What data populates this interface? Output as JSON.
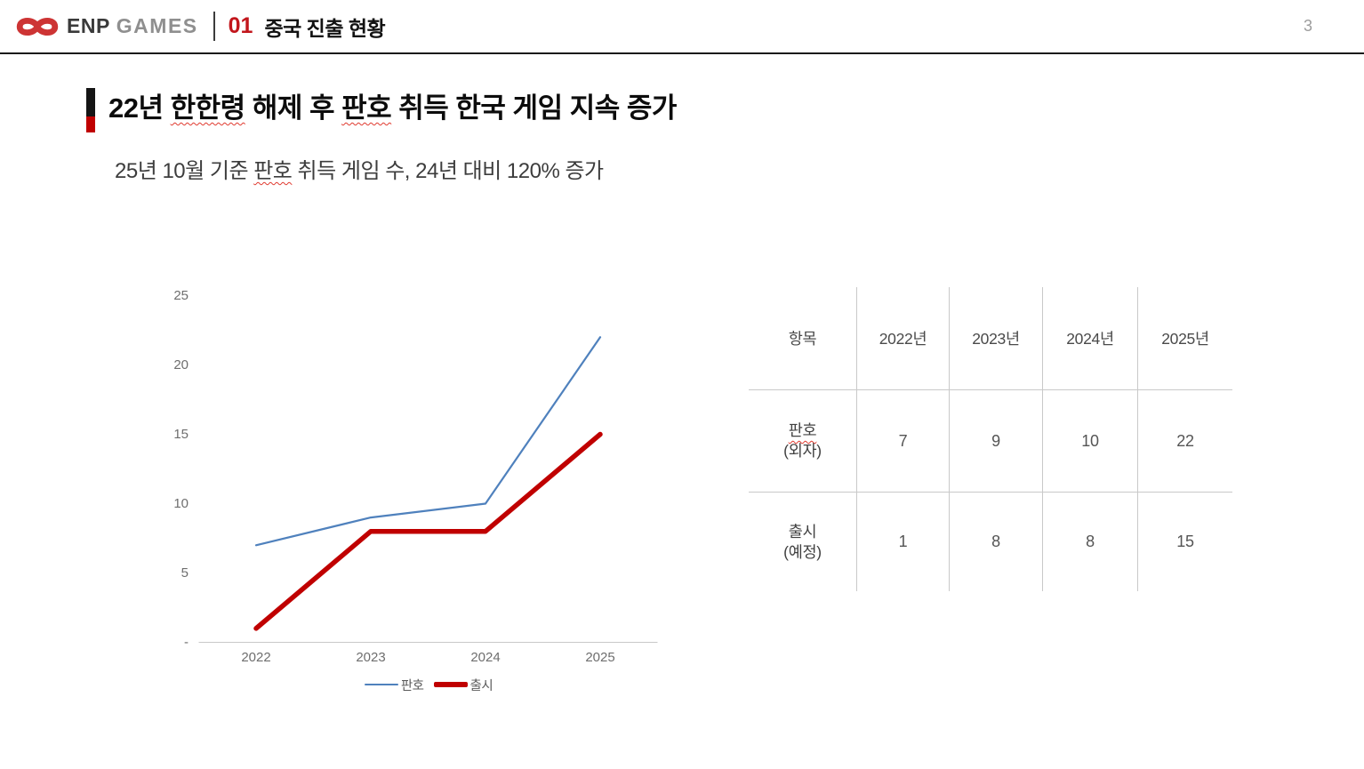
{
  "header": {
    "brand_bold": "ENP",
    "brand_light": "GAMES",
    "section_number": "01",
    "section_title": "중국 진출 현황",
    "page_number": "3"
  },
  "title": {
    "segments": [
      {
        "text": "22년 ",
        "wavy": false
      },
      {
        "text": "한한령",
        "wavy": true
      },
      {
        "text": " 해제 후 ",
        "wavy": false
      },
      {
        "text": "판호",
        "wavy": true
      },
      {
        "text": " 취득 한국 게임 지속 증가",
        "wavy": false
      }
    ],
    "subtitle_segments": [
      {
        "text": "25년 10월 기준 ",
        "wavy": false
      },
      {
        "text": "판호",
        "wavy": true
      },
      {
        "text": " 취득 게임 수, 24년 대비 120% 증가",
        "wavy": false
      }
    ]
  },
  "chart_data": {
    "type": "line",
    "title": "",
    "xlabel": "",
    "ylabel": "",
    "categories": [
      "2022",
      "2023",
      "2024",
      "2025"
    ],
    "series": [
      {
        "name": "판호",
        "values": [
          7,
          9,
          10,
          22
        ],
        "color": "#4f81bd",
        "stroke_width": 2.2
      },
      {
        "name": "출시",
        "values": [
          1,
          8,
          8,
          15
        ],
        "color": "#c00000",
        "stroke_width": 5.5
      }
    ],
    "ylim": [
      0,
      25
    ],
    "ytick_values": [
      0,
      5,
      10,
      15,
      20,
      25
    ],
    "ytick_labels": [
      "-",
      "5",
      "10",
      "15",
      "20",
      "25"
    ],
    "grid": false,
    "legend_position": "bottom",
    "axis_color": "#c8c8c8"
  },
  "table": {
    "columns": [
      "항목",
      "2022년",
      "2023년",
      "2024년",
      "2025년"
    ],
    "rows": [
      {
        "label_main": "판호",
        "label_sub": "(외자)",
        "values": [
          "7",
          "9",
          "10",
          "22"
        ]
      },
      {
        "label_main": "출시",
        "label_sub": "(예정)",
        "values": [
          "1",
          "8",
          "8",
          "15"
        ]
      }
    ]
  },
  "colors": {
    "accent_red": "#c00000",
    "accent_black": "#151515",
    "logo_red": "#cd3434",
    "section_number_red": "#c2161c",
    "series_blue": "#4f81bd",
    "series_red": "#c00000",
    "table_border_gray": "#c9c9c9",
    "spellcheck_red": "#e03a2f"
  }
}
